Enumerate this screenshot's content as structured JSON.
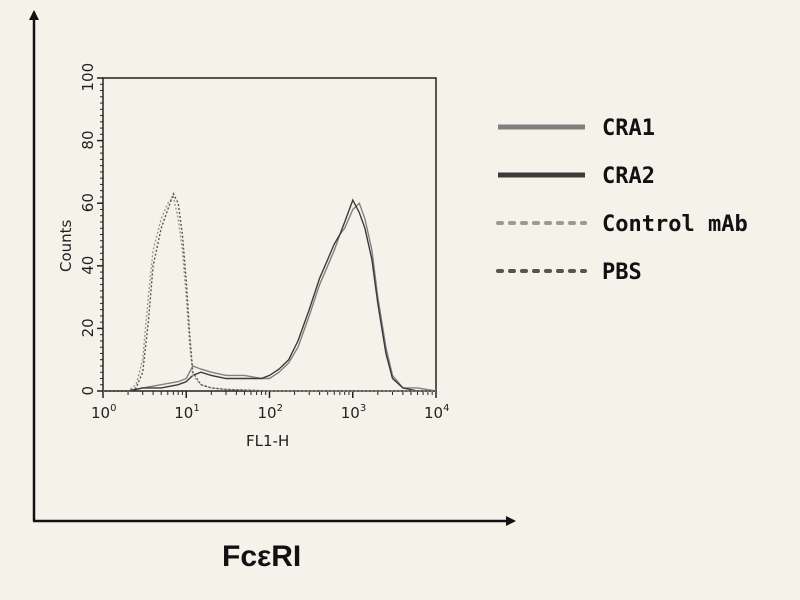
{
  "chart_data": {
    "type": "line",
    "title": "",
    "xlabel": "FL1-H",
    "ylabel": "Counts",
    "figure_xlabel": "FcεRI",
    "xscale": "log",
    "xlim": [
      1,
      10000
    ],
    "ylim": [
      0,
      100
    ],
    "x_ticks": [
      {
        "base": "10",
        "exp": "0"
      },
      {
        "base": "10",
        "exp": "1"
      },
      {
        "base": "10",
        "exp": "2"
      },
      {
        "base": "10",
        "exp": "3"
      },
      {
        "base": "10",
        "exp": "4"
      }
    ],
    "y_ticks": [
      "0",
      "20",
      "40",
      "60",
      "80",
      "100"
    ],
    "grid": false,
    "legend_position": "right",
    "series": [
      {
        "name": "CRA1",
        "style": "solid",
        "color": "#808080",
        "x": [
          1,
          2,
          3,
          5,
          8,
          10,
          12,
          15,
          20,
          30,
          50,
          80,
          100,
          130,
          170,
          220,
          300,
          400,
          500,
          600,
          700,
          800,
          1000,
          1200,
          1400,
          1700,
          2000,
          2500,
          3000,
          4000,
          6000,
          10000
        ],
        "y": [
          0,
          0,
          1,
          2,
          3,
          4,
          8,
          7,
          6,
          5,
          5,
          4,
          4,
          6,
          9,
          14,
          24,
          34,
          40,
          45,
          50,
          52,
          58,
          60,
          55,
          45,
          30,
          14,
          5,
          1,
          1,
          0
        ]
      },
      {
        "name": "CRA2",
        "style": "solid",
        "color": "#3a3a3a",
        "x": [
          1,
          2,
          3,
          5,
          8,
          10,
          12,
          15,
          20,
          30,
          50,
          80,
          100,
          130,
          170,
          220,
          300,
          400,
          500,
          600,
          700,
          800,
          1000,
          1200,
          1400,
          1700,
          2000,
          2500,
          3000,
          4000,
          6000,
          10000
        ],
        "y": [
          0,
          0,
          1,
          1,
          2,
          3,
          5,
          6,
          5,
          4,
          4,
          4,
          5,
          7,
          10,
          16,
          26,
          36,
          42,
          47,
          50,
          54,
          61,
          57,
          52,
          42,
          28,
          12,
          4,
          1,
          0,
          0
        ]
      },
      {
        "name": "Control mAb",
        "style": "dotted",
        "color": "#999999",
        "x": [
          1,
          2,
          2.5,
          3,
          3.5,
          4,
          5,
          6,
          7,
          8,
          9,
          10,
          11,
          12,
          15,
          20,
          30,
          100,
          10000
        ],
        "y": [
          0,
          0,
          2,
          10,
          30,
          45,
          55,
          60,
          62,
          55,
          45,
          30,
          15,
          5,
          2,
          1,
          0.5,
          0,
          0
        ]
      },
      {
        "name": "PBS",
        "style": "dotted",
        "color": "#555555",
        "x": [
          1,
          2,
          2.5,
          3,
          3.5,
          4,
          5,
          6,
          7,
          8,
          9,
          10,
          11,
          12,
          15,
          20,
          30,
          100,
          10000
        ],
        "y": [
          0,
          0,
          1,
          6,
          22,
          40,
          52,
          58,
          63,
          60,
          50,
          35,
          18,
          6,
          2,
          1,
          0.5,
          0,
          0
        ]
      }
    ]
  }
}
